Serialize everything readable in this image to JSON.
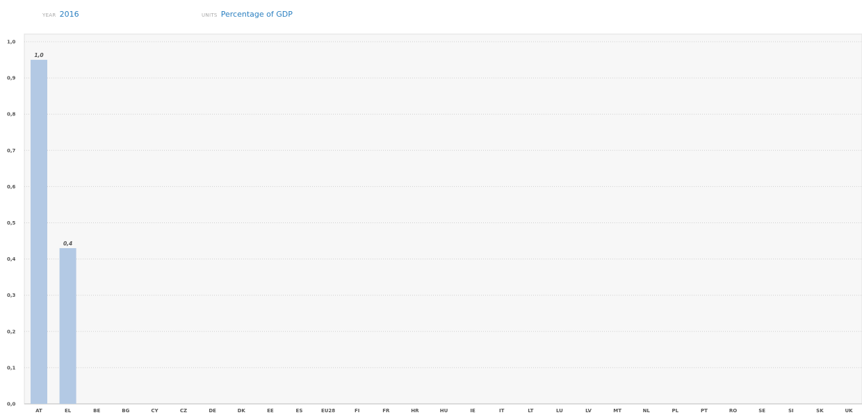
{
  "filters": {
    "year_label": "YEAR",
    "year_value": "2016",
    "units_label": "UNITS",
    "units_value": "Percentage of GDP"
  },
  "colors": {
    "bar": "#b3c9e4",
    "plot_bg": "#f7f7f7",
    "grid": "#cfcfcf",
    "accent": "#2a7fc0"
  },
  "chart_data": {
    "type": "bar",
    "categories": [
      "AT",
      "EL",
      "BE",
      "BG",
      "CY",
      "CZ",
      "DE",
      "DK",
      "EE",
      "ES",
      "EU28",
      "FI",
      "FR",
      "HR",
      "HU",
      "IE",
      "IT",
      "LT",
      "LU",
      "LV",
      "MT",
      "NL",
      "PL",
      "PT",
      "RO",
      "SE",
      "SI",
      "SK",
      "UK"
    ],
    "values": [
      0.95,
      0.43,
      null,
      null,
      null,
      null,
      null,
      null,
      null,
      null,
      null,
      null,
      null,
      null,
      null,
      null,
      null,
      null,
      null,
      null,
      null,
      null,
      null,
      null,
      null,
      null,
      null,
      null,
      null
    ],
    "data_labels": [
      "1,0",
      "0,4",
      "",
      "",
      "",
      "",
      "",
      "",
      "",
      "",
      "",
      "",
      "",
      "",
      "",
      "",
      "",
      "",
      "",
      "",
      "",
      "",
      "",
      "",
      "",
      "",
      "",
      "",
      ""
    ],
    "y_ticks": [
      "0,0",
      "0,1",
      "0,2",
      "0,3",
      "0,4",
      "0,5",
      "0,6",
      "0,7",
      "0,8",
      "0,9",
      "1,0"
    ],
    "ylim": [
      0,
      1.0
    ],
    "grid": true
  }
}
